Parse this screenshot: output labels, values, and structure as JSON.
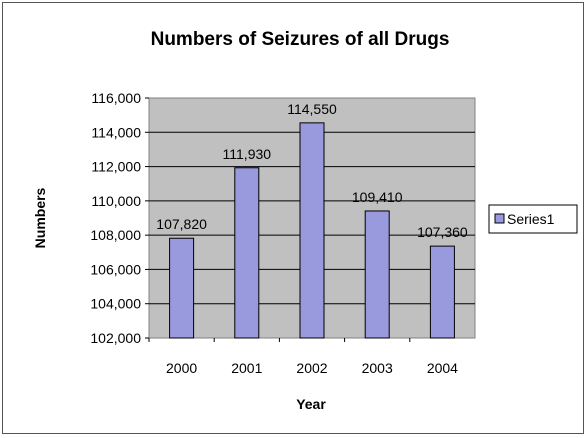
{
  "chart_data": {
    "type": "bar",
    "title": "Numbers of Seizures of all Drugs",
    "xlabel": "Year",
    "ylabel": "Numbers",
    "categories": [
      "2000",
      "2001",
      "2002",
      "2003",
      "2004"
    ],
    "series": [
      {
        "name": "Series1",
        "values": [
          107820,
          111930,
          114550,
          109410,
          107360
        ],
        "data_labels": [
          "107,820",
          "111,930",
          "114,550",
          "109,410",
          "107,360"
        ],
        "color": "#9999dd"
      }
    ],
    "ylim": [
      102000,
      116000
    ],
    "yticks": [
      102000,
      104000,
      106000,
      108000,
      110000,
      112000,
      114000,
      116000
    ],
    "ytick_labels": [
      "102,000",
      "104,000",
      "106,000",
      "108,000",
      "110,000",
      "112,000",
      "114,000",
      "116,000"
    ],
    "grid": true,
    "plot_background": "#c0c0c0",
    "legend": "right"
  }
}
